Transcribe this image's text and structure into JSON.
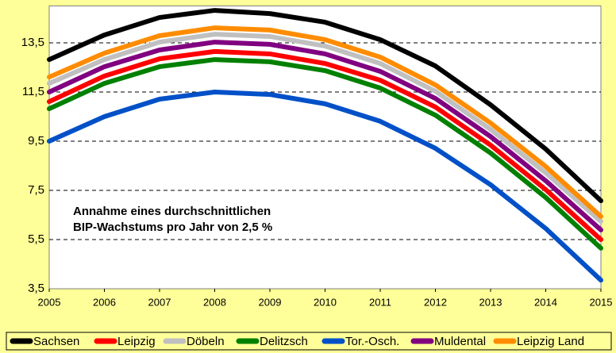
{
  "chart_data": {
    "type": "line",
    "categories": [
      "2005",
      "2006",
      "2007",
      "2008",
      "2009",
      "2010",
      "2011",
      "2012",
      "2013",
      "2014",
      "2015"
    ],
    "ylim": [
      3.5,
      15
    ],
    "yticks": [
      {
        "value": 3.5,
        "label": "3,5"
      },
      {
        "value": 5.5,
        "label": "5,5"
      },
      {
        "value": 7.5,
        "label": "7,5"
      },
      {
        "value": 9.5,
        "label": "9,5"
      },
      {
        "value": 11.5,
        "label": "11,5"
      },
      {
        "value": 13.5,
        "label": "13,5"
      }
    ],
    "grid": true,
    "legend": "bottom",
    "annotation": [
      "Annahme eines durchschnittlichen",
      "BIP-Wachstums pro Jahr von 2,5 %"
    ],
    "series": [
      {
        "name": "Sachsen",
        "color": "#000000",
        "values": [
          12.82,
          13.82,
          14.53,
          14.82,
          14.69,
          14.34,
          13.63,
          12.56,
          10.98,
          9.18,
          7.08
        ]
      },
      {
        "name": "Leipzig",
        "color": "#ff0000",
        "values": [
          11.11,
          12.15,
          12.85,
          13.15,
          13.05,
          12.66,
          11.98,
          10.89,
          9.34,
          7.53,
          5.5
        ]
      },
      {
        "name": "Döbeln",
        "color": "#c0c0c0",
        "values": [
          11.85,
          12.82,
          13.53,
          13.85,
          13.76,
          13.37,
          12.66,
          11.53,
          9.98,
          8.21,
          6.24
        ]
      },
      {
        "name": "Delitzsch",
        "color": "#008000",
        "values": [
          10.82,
          11.85,
          12.53,
          12.82,
          12.73,
          12.37,
          11.66,
          10.56,
          9.02,
          7.21,
          5.15
        ]
      },
      {
        "name": "Tor.-Osch.",
        "color": "#0050c8",
        "values": [
          9.5,
          10.5,
          11.21,
          11.5,
          11.4,
          11.02,
          10.31,
          9.21,
          7.73,
          5.95,
          3.85
        ]
      },
      {
        "name": "Muldental",
        "color": "#800080",
        "values": [
          11.5,
          12.53,
          13.21,
          13.53,
          13.44,
          13.05,
          12.34,
          11.24,
          9.69,
          7.89,
          5.89
        ]
      },
      {
        "name": "Leipzig Land",
        "color": "#ff8c00",
        "values": [
          12.11,
          13.08,
          13.79,
          14.11,
          14.02,
          13.63,
          12.92,
          11.79,
          10.24,
          8.47,
          6.44
        ]
      }
    ]
  }
}
